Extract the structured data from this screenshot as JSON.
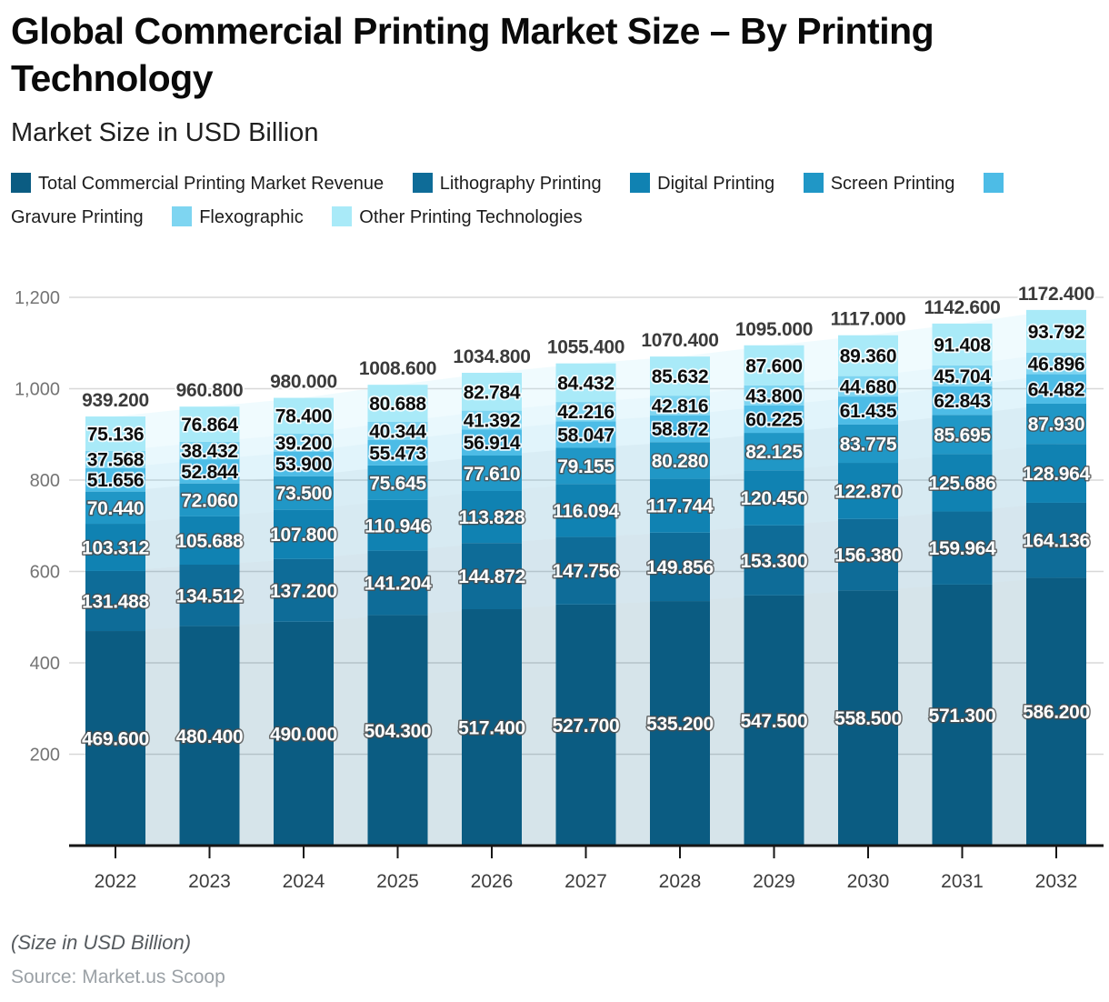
{
  "header": {
    "title_line1": "Global Commercial Printing Market Size – By Printing",
    "title_line2": "Technology",
    "subtitle": "Market Size in USD Billion"
  },
  "footer": {
    "note": "(Size in USD Billion)",
    "source": "Source: Market.us Scoop"
  },
  "chart_data": {
    "type": "bar",
    "stacked": true,
    "title": "Global Commercial Printing Market Size – By Printing Technology",
    "subtitle": "Market Size in USD Billion",
    "xlabel": "",
    "ylabel": "",
    "categories": [
      "2022",
      "2023",
      "2024",
      "2025",
      "2026",
      "2027",
      "2028",
      "2029",
      "2030",
      "2031",
      "2032"
    ],
    "series": [
      {
        "name": "Total Commercial Printing Market Revenue",
        "color": "#0b5c82",
        "values": [
          469.6,
          480.4,
          490.0,
          504.3,
          517.4,
          527.7,
          535.2,
          547.5,
          558.5,
          571.3,
          586.2
        ]
      },
      {
        "name": "Lithography Printing",
        "color": "#0e6c98",
        "values": [
          131.488,
          134.512,
          137.2,
          141.204,
          144.872,
          147.756,
          149.856,
          153.3,
          156.38,
          159.964,
          164.136
        ]
      },
      {
        "name": "Digital Printing",
        "color": "#1082b2",
        "values": [
          103.312,
          105.688,
          107.8,
          110.946,
          113.828,
          116.094,
          117.744,
          120.45,
          122.87,
          125.686,
          128.964
        ]
      },
      {
        "name": "Screen Printing",
        "color": "#2097c6",
        "values": [
          70.44,
          72.06,
          73.5,
          75.645,
          77.61,
          79.155,
          80.28,
          82.125,
          83.775,
          85.695,
          87.93
        ]
      },
      {
        "name": "Gravure Printing",
        "color": "#4dbce6",
        "values": [
          51.656,
          52.844,
          53.9,
          55.473,
          56.914,
          58.047,
          58.872,
          60.225,
          61.435,
          62.843,
          64.482
        ]
      },
      {
        "name": "Flexographic",
        "color": "#7ed5f1",
        "values": [
          37.568,
          38.432,
          39.2,
          40.344,
          41.392,
          42.216,
          42.816,
          43.8,
          44.68,
          45.704,
          46.896
        ]
      },
      {
        "name": "Other Printing Technologies",
        "color": "#a9eaf8",
        "values": [
          75.136,
          76.864,
          78.4,
          80.688,
          82.784,
          84.432,
          85.632,
          87.6,
          89.36,
          91.408,
          93.792
        ]
      }
    ],
    "totals": [
      939.2,
      960.8,
      980.0,
      1008.6,
      1034.8,
      1055.4,
      1070.4,
      1095.0,
      1117.0,
      1142.6,
      1172.4
    ],
    "ylim": [
      0,
      1200
    ],
    "ytick_interval": 200,
    "ytick_labels": [
      "200",
      "400",
      "600",
      "800",
      "1,000",
      "1,200"
    ],
    "grid": true,
    "legend_position": "top",
    "value_label_decimals": 3,
    "background_band_opacity": 0.17,
    "grid_color": "#d8d8d8",
    "axis_color": "#161616",
    "total_label_color": "#3b3b3b"
  }
}
